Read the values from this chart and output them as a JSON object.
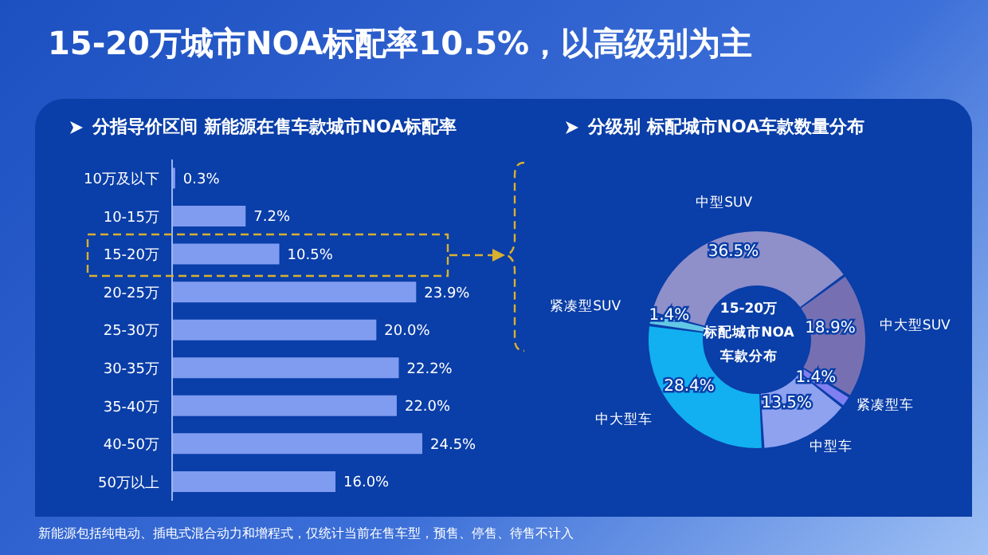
{
  "chart_data": [
    {
      "type": "bar",
      "orientation": "horizontal",
      "title": "15-20万城市NOA标配率10.5%，以高级别为主",
      "subtitle": "分指导价区间 新能源在售车款城市NOA标配率",
      "categories": [
        "10万及以下",
        "10-15万",
        "15-20万",
        "20-25万",
        "25-30万",
        "30-35万",
        "35-40万",
        "40-50万",
        "50万以上"
      ],
      "values": [
        0.3,
        7.2,
        10.5,
        23.9,
        20.0,
        22.2,
        22.0,
        24.5,
        16.0
      ],
      "value_labels": [
        "0.3%",
        "7.2%",
        "10.5%",
        "23.9%",
        "20.0%",
        "22.2%",
        "22.0%",
        "24.5%",
        "16.0%"
      ],
      "color": "#7f9cf0",
      "annotations": [
        "新能源包括纯电动、插电式混合动力和增程式，仅统计当前在售车型，预售、停售、待售不计入"
      ]
    },
    {
      "type": "donut",
      "title": "分级别 标配城市NOA车款数量分布",
      "categories": [
        "中型SUV",
        "中大型SUV",
        "紧凑型车",
        "中型车",
        "中大型车",
        "紧凑型SUV"
      ],
      "values": [
        36.5,
        18.9,
        1.4,
        13.5,
        28.4,
        1.4
      ],
      "value_labels": [
        "36.5%",
        "18.9%",
        "1.4%",
        "13.5%",
        "28.4%",
        "1.4%"
      ],
      "colors": [
        "#8f8fca",
        "#7670b2",
        "#7f7ff2",
        "#8fa2f0",
        "#12b0f0",
        "#62c8e6"
      ],
      "annotations": [
        "15-20万",
        "标配城市NOA",
        "车款分布"
      ]
    }
  ]
}
